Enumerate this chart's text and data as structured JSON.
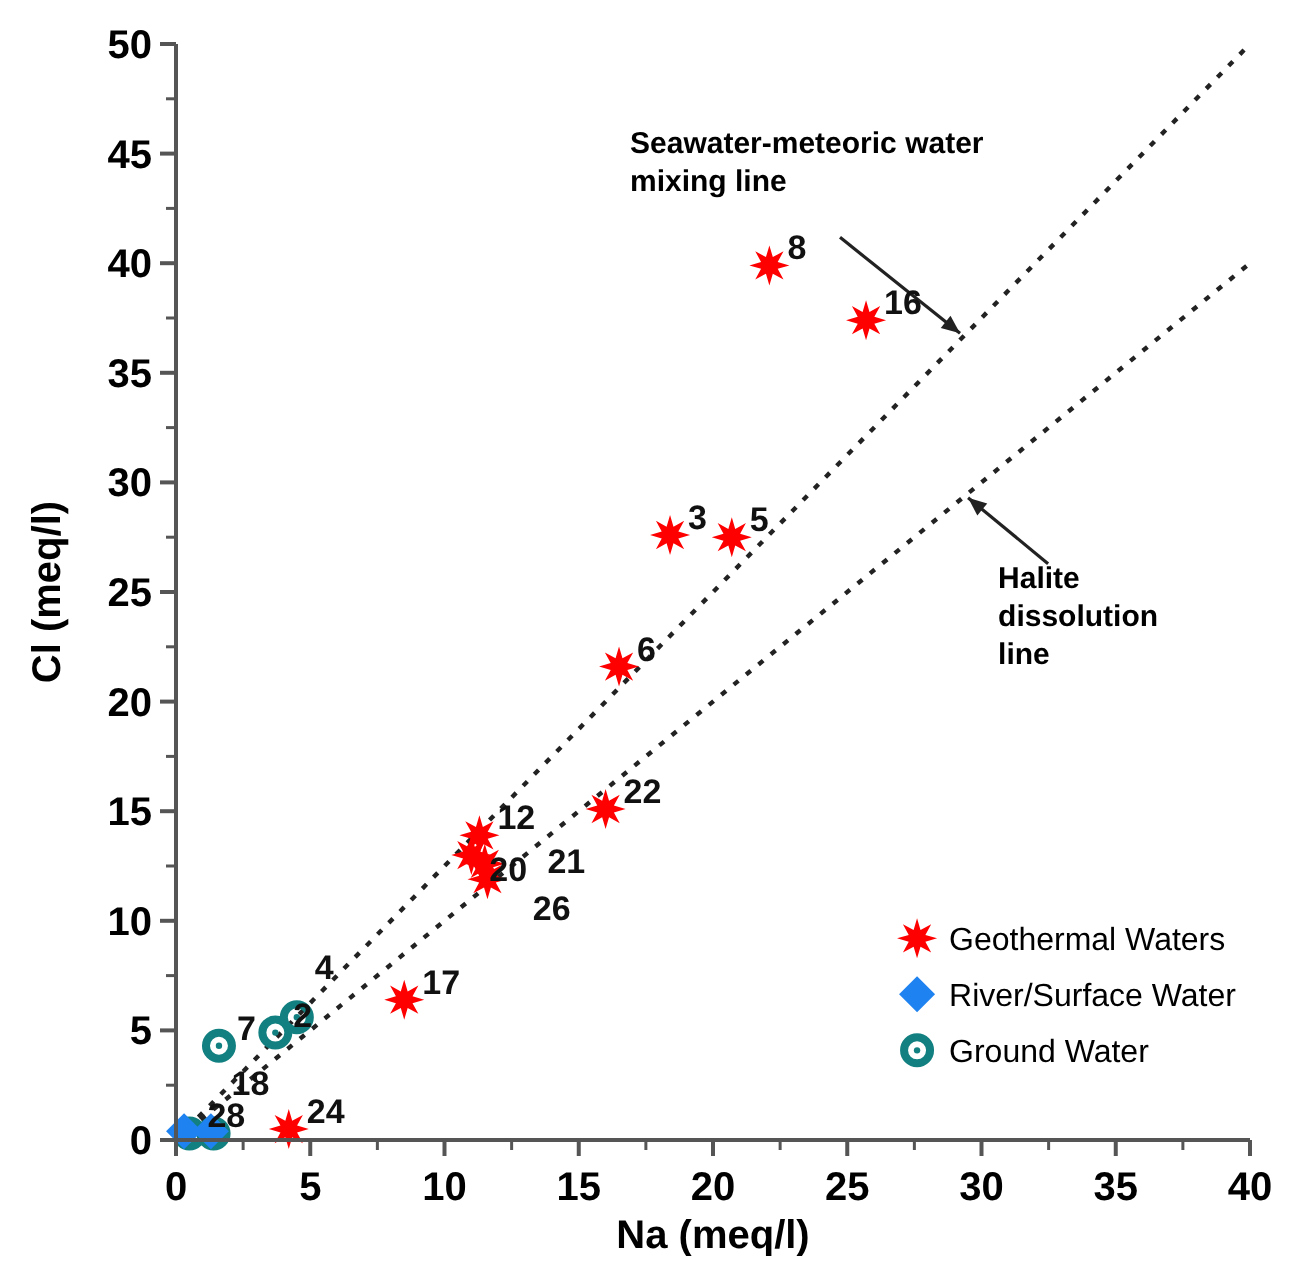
{
  "chart_data": {
    "type": "scatter",
    "xlabel": "Na (meq/l)",
    "ylabel": "Cl (meq/l)",
    "xlim": [
      0,
      40
    ],
    "ylim": [
      0,
      50
    ],
    "xticks": [
      0,
      5,
      10,
      15,
      20,
      25,
      30,
      35,
      40
    ],
    "yticks": [
      0,
      5,
      10,
      15,
      20,
      25,
      30,
      35,
      40,
      45,
      50
    ],
    "legend": "bottom right",
    "series": [
      {
        "name": "Geothermal Waters",
        "color": "#ff0000",
        "marker": "star",
        "x": [
          22.1,
          25.7,
          18.4,
          20.7,
          16.5,
          16.0,
          11.3,
          11.0,
          11.5,
          11.6,
          8.5,
          4.2
        ],
        "values": [
          39.9,
          37.4,
          27.6,
          27.5,
          21.6,
          15.1,
          13.9,
          13.0,
          12.6,
          11.9,
          6.4,
          0.5
        ]
      },
      {
        "name": "River/Surface Water",
        "color": "#1e82f0",
        "marker": "diamond",
        "x": [
          0.3,
          1.3
        ],
        "values": [
          0.4,
          0.4
        ]
      },
      {
        "name": "Ground Water",
        "color": "#128080",
        "marker": "circle",
        "x": [
          1.6,
          3.7,
          4.5,
          0.5,
          1.4
        ],
        "values": [
          4.3,
          4.9,
          5.6,
          0.3,
          0.3
        ]
      },
      {
        "type": "line",
        "color": "#222222",
        "line_style": "dotted",
        "x": [
          0,
          40
        ],
        "values": [
          0,
          50
        ]
      },
      {
        "type": "line",
        "color": "#222222",
        "line_style": "dotted",
        "x": [
          0,
          40
        ],
        "values": [
          0,
          40
        ]
      }
    ],
    "annotations": [
      {
        "text": "Seawater-meteoric water\nmixing line",
        "x": 29.2,
        "y": 36.8
      },
      {
        "text": "Halite\ndissolution\nline",
        "x": 29.5,
        "y": 29.3
      },
      {
        "text": "8",
        "x": 22.1,
        "y": 39.9
      },
      {
        "text": "16",
        "x": 25.7,
        "y": 37.4
      },
      {
        "text": "3",
        "x": 18.4,
        "y": 27.6
      },
      {
        "text": "5",
        "x": 20.7,
        "y": 27.5
      },
      {
        "text": "6",
        "x": 16.5,
        "y": 21.6
      },
      {
        "text": "22",
        "x": 16.0,
        "y": 15.1
      },
      {
        "text": "12",
        "x": 11.3,
        "y": 13.9
      },
      {
        "text": "20",
        "x": 11.0,
        "y": 13.0
      },
      {
        "text": "26",
        "x": 11.5,
        "y": 12.6
      },
      {
        "text": "21",
        "x": 11.6,
        "y": 11.9
      },
      {
        "text": "17",
        "x": 8.5,
        "y": 6.4
      },
      {
        "text": "24",
        "x": 4.2,
        "y": 0.5
      },
      {
        "text": "7",
        "x": 1.6,
        "y": 4.3
      },
      {
        "text": "2",
        "x": 3.7,
        "y": 4.9
      },
      {
        "text": "4",
        "x": 4.5,
        "y": 5.6
      },
      {
        "text": "28",
        "x": 0.5,
        "y": 0.3
      },
      {
        "text": "18",
        "x": 1.4,
        "y": 0.3
      }
    ]
  }
}
